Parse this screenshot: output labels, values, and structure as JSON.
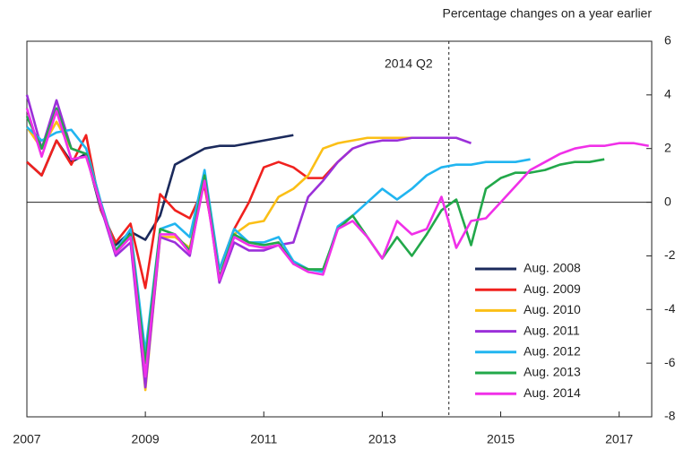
{
  "chart_data": {
    "type": "line",
    "unit_label": "Percentage changes on a year earlier",
    "annotation": {
      "label": "2014 Q2",
      "x": 2014.125
    },
    "x": [
      2007,
      2007.25,
      2007.5,
      2007.75,
      2008,
      2008.25,
      2008.5,
      2008.75,
      2009,
      2009.25,
      2009.5,
      2009.75,
      2010,
      2010.25,
      2010.5,
      2010.75,
      2011,
      2011.25,
      2011.5,
      2011.75,
      2012,
      2012.25,
      2012.5,
      2012.75,
      2013,
      2013.25,
      2013.5,
      2013.75,
      2014,
      2014.25,
      2014.5,
      2014.75,
      2015,
      2015.25,
      2015.5,
      2015.75,
      2016,
      2016.25,
      2016.5,
      2016.75,
      2017,
      2017.25,
      2017.5
    ],
    "series": [
      {
        "name": "Aug. 2008",
        "color": "#1b2a5c",
        "values": [
          1.5,
          1.0,
          2.3,
          1.5,
          1.8,
          -0.3,
          -1.6,
          -1.1,
          -1.4,
          -0.5,
          1.4,
          1.7,
          2.0,
          2.1,
          2.1,
          2.2,
          2.3,
          2.4,
          2.5,
          null,
          null,
          null,
          null,
          null,
          null,
          null,
          null,
          null,
          null,
          null,
          null,
          null,
          null,
          null,
          null,
          null,
          null,
          null,
          null,
          null,
          null,
          null,
          null
        ]
      },
      {
        "name": "Aug. 2009",
        "color": "#f0211e",
        "values": [
          1.5,
          1.0,
          2.3,
          1.4,
          2.5,
          -0.3,
          -1.5,
          -0.8,
          -3.2,
          0.3,
          -0.3,
          -0.6,
          0.6,
          -2.5,
          -1.0,
          0.0,
          1.3,
          1.5,
          1.3,
          0.9,
          0.9,
          1.5,
          2.0,
          null,
          null,
          null,
          null,
          null,
          null,
          null,
          null,
          null,
          null,
          null,
          null,
          null,
          null,
          null,
          null,
          null,
          null,
          null,
          null
        ]
      },
      {
        "name": "Aug. 2010",
        "color": "#fbbf16",
        "values": [
          2.8,
          2.0,
          3.0,
          2.0,
          1.8,
          -0.2,
          -1.8,
          -1.2,
          -7.0,
          -1.3,
          -1.3,
          -1.7,
          0.9,
          -2.5,
          -1.2,
          -0.8,
          -0.7,
          0.2,
          0.5,
          1.0,
          2.0,
          2.2,
          2.3,
          2.4,
          2.4,
          2.4,
          2.4,
          null,
          null,
          null,
          null,
          null,
          null,
          null,
          null,
          null,
          null,
          null,
          null,
          null,
          null,
          null,
          null
        ]
      },
      {
        "name": "Aug. 2011",
        "color": "#9b30d9",
        "values": [
          4.0,
          2.0,
          3.8,
          2.0,
          1.8,
          -0.2,
          -2.0,
          -1.5,
          -6.9,
          -1.3,
          -1.5,
          -2.0,
          1.0,
          -3.0,
          -1.5,
          -1.8,
          -1.8,
          -1.6,
          -1.5,
          0.2,
          0.8,
          1.5,
          2.0,
          2.2,
          2.3,
          2.3,
          2.4,
          2.4,
          2.4,
          2.4,
          2.2,
          null,
          null,
          null,
          null,
          null,
          null,
          null,
          null,
          null,
          null,
          null,
          null
        ]
      },
      {
        "name": "Aug. 2012",
        "color": "#21b5f0",
        "values": [
          2.8,
          2.3,
          2.6,
          2.7,
          2.0,
          0.0,
          -1.8,
          -1.0,
          -5.6,
          -1.0,
          -0.8,
          -1.3,
          1.2,
          -2.5,
          -1.0,
          -1.5,
          -1.5,
          -1.3,
          -2.2,
          -2.5,
          -2.6,
          -0.9,
          -0.5,
          0.0,
          0.5,
          0.1,
          0.5,
          1.0,
          1.3,
          1.4,
          1.4,
          1.5,
          1.5,
          1.5,
          1.6,
          null,
          null,
          null,
          null,
          null,
          null,
          null,
          null
        ]
      },
      {
        "name": "Aug. 2013",
        "color": "#22a84a",
        "values": [
          3.2,
          2.0,
          3.5,
          2.0,
          1.8,
          -0.1,
          -1.8,
          -1.2,
          -6.0,
          -1.0,
          -1.2,
          -1.8,
          1.0,
          -2.8,
          -1.2,
          -1.5,
          -1.6,
          -1.5,
          -2.3,
          -2.5,
          -2.5,
          -1.0,
          -0.5,
          -1.3,
          -2.1,
          -1.3,
          -2.0,
          -1.2,
          -0.3,
          0.1,
          -1.6,
          0.5,
          0.9,
          1.1,
          1.1,
          1.2,
          1.4,
          1.5,
          1.5,
          1.6,
          null,
          null,
          null
        ]
      },
      {
        "name": "Aug. 2014",
        "color": "#f030e8",
        "values": [
          3.5,
          1.7,
          3.4,
          1.6,
          1.7,
          -0.1,
          -1.9,
          -1.3,
          -6.5,
          -1.2,
          -1.2,
          -1.9,
          0.8,
          -2.9,
          -1.3,
          -1.6,
          -1.7,
          -1.6,
          -2.3,
          -2.6,
          -2.7,
          -1.0,
          -0.7,
          -1.3,
          -2.1,
          -0.7,
          -1.2,
          -1.0,
          0.2,
          -1.7,
          -0.7,
          -0.6,
          0.0,
          0.6,
          1.2,
          1.5,
          1.8,
          2.0,
          2.1,
          2.1,
          2.2,
          2.2,
          2.1
        ]
      }
    ],
    "xlim": [
      2007,
      2017.55
    ],
    "xticks": [
      2007,
      2009,
      2011,
      2013,
      2015,
      2017
    ],
    "ylim": [
      -8,
      6
    ],
    "yticks": [
      -8,
      -6,
      -4,
      -2,
      0,
      2,
      4,
      6
    ],
    "zero_line": true
  }
}
